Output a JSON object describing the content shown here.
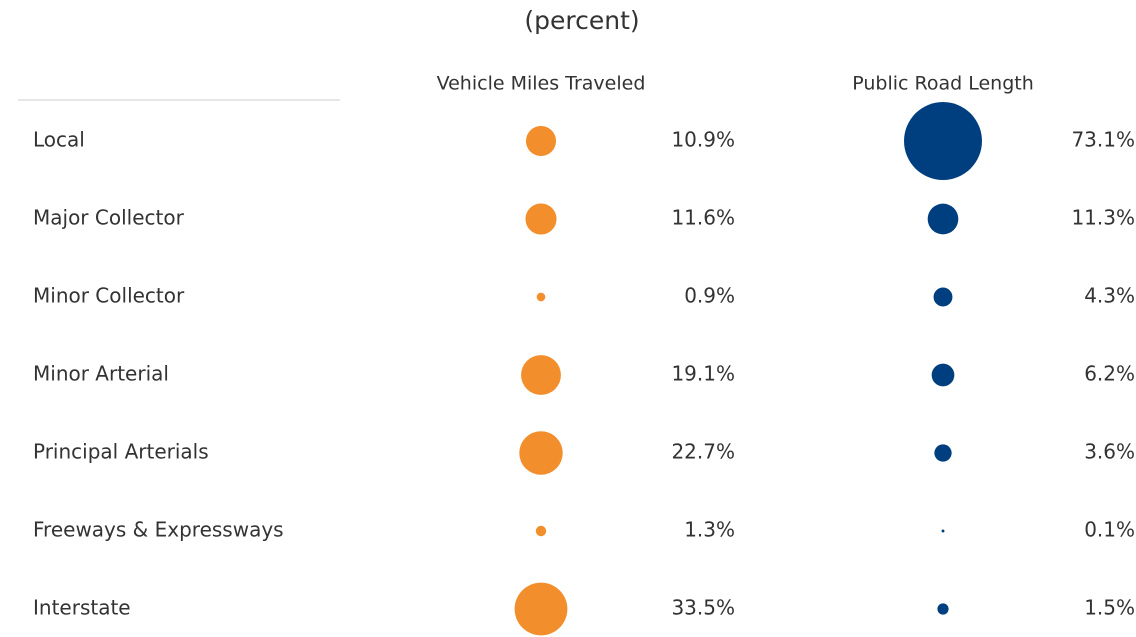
{
  "chart_data": {
    "type": "bubble-table",
    "title": "(percent)",
    "categories": [
      "Local",
      "Major Collector",
      "Minor Collector",
      "Minor Arterial",
      "Principal Arterials",
      "Freeways & Expressways",
      "Interstate"
    ],
    "series": [
      {
        "name": "Vehicle Miles Traveled",
        "color": "#f28e2b",
        "values": [
          10.9,
          11.6,
          0.9,
          19.1,
          22.7,
          1.3,
          33.5
        ],
        "value_labels": [
          "10.9%",
          "11.6%",
          "0.9%",
          "19.1%",
          "22.7%",
          "1.3%",
          "33.5%"
        ]
      },
      {
        "name": "Public Road Length",
        "color": "#003f7f",
        "values": [
          73.1,
          11.3,
          4.3,
          6.2,
          3.6,
          0.1,
          1.5
        ],
        "value_labels": [
          "73.1%",
          "11.3%",
          "4.3%",
          "6.2%",
          "3.6%",
          "0.1%",
          "1.5%"
        ]
      }
    ]
  }
}
